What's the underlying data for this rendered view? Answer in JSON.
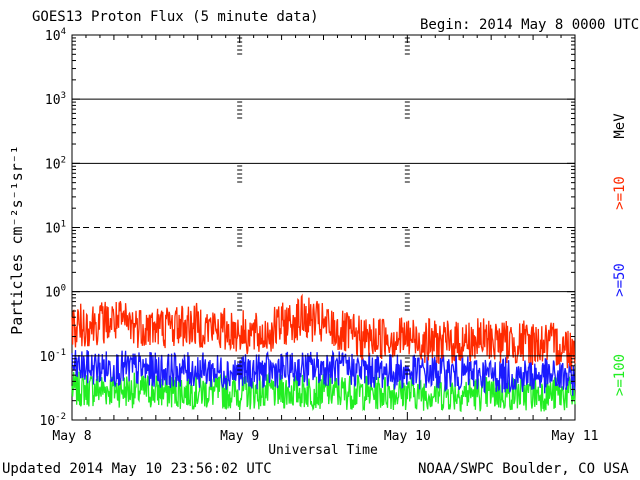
{
  "header": {
    "title": "GOES13 Proton Flux (5 minute data)",
    "begin": "Begin: 2014 May 8 0000 UTC"
  },
  "footer": {
    "updated": "Updated 2014 May 10 23:56:02 UTC",
    "credit": "NOAA/SWPC Boulder, CO USA"
  },
  "chart_data": {
    "type": "line",
    "title": "GOES13 Proton Flux (5 minute data)",
    "xlabel": "Universal Time",
    "ylabel": "Particles cm⁻²s⁻¹sr⁻¹",
    "y_scale": "log",
    "ylim": [
      0.01,
      10000
    ],
    "y_ticks": [
      {
        "base": "10",
        "exp": "-2"
      },
      {
        "base": "10",
        "exp": "-1"
      },
      {
        "base": "10",
        "exp": "0"
      },
      {
        "base": "10",
        "exp": "1"
      },
      {
        "base": "10",
        "exp": "2"
      },
      {
        "base": "10",
        "exp": "3"
      },
      {
        "base": "10",
        "exp": "4"
      }
    ],
    "x_ticks": [
      "May 8",
      "May 9",
      "May 10",
      "May 11"
    ],
    "xlim_days": [
      0,
      3
    ],
    "solid_threshold_lines": [
      0.1,
      1,
      100,
      1000
    ],
    "dashed_threshold_lines": [
      10
    ],
    "grid": true,
    "legend_position": "right, vertical",
    "legend_unit": "MeV",
    "series": [
      {
        "name": ">=10",
        "color": "#ff2a00",
        "x_days": [
          0,
          0.125,
          0.25,
          0.375,
          0.5,
          0.625,
          0.75,
          0.875,
          1,
          1.125,
          1.25,
          1.375,
          1.5,
          1.625,
          1.75,
          1.875,
          2,
          2.125,
          2.25,
          2.375,
          2.5,
          2.625,
          2.75,
          2.875,
          3
        ],
        "y": [
          0.28,
          0.32,
          0.35,
          0.3,
          0.28,
          0.3,
          0.3,
          0.26,
          0.24,
          0.2,
          0.3,
          0.4,
          0.3,
          0.22,
          0.18,
          0.2,
          0.19,
          0.17,
          0.16,
          0.17,
          0.18,
          0.16,
          0.16,
          0.15,
          0.13
        ]
      },
      {
        "name": ">=50",
        "color": "#1a1aff",
        "x_days": [
          0,
          0.25,
          0.5,
          0.75,
          1,
          1.25,
          1.5,
          1.75,
          2,
          2.25,
          2.5,
          2.75,
          3
        ],
        "y": [
          0.065,
          0.065,
          0.06,
          0.06,
          0.055,
          0.06,
          0.065,
          0.06,
          0.055,
          0.055,
          0.05,
          0.05,
          0.045
        ]
      },
      {
        "name": ">=100",
        "color": "#22ee22",
        "x_days": [
          0,
          0.25,
          0.5,
          0.75,
          1,
          1.25,
          1.5,
          1.75,
          2,
          2.25,
          2.5,
          2.75,
          3
        ],
        "y": [
          0.03,
          0.03,
          0.028,
          0.028,
          0.027,
          0.028,
          0.028,
          0.027,
          0.027,
          0.026,
          0.026,
          0.026,
          0.025
        ]
      }
    ]
  }
}
